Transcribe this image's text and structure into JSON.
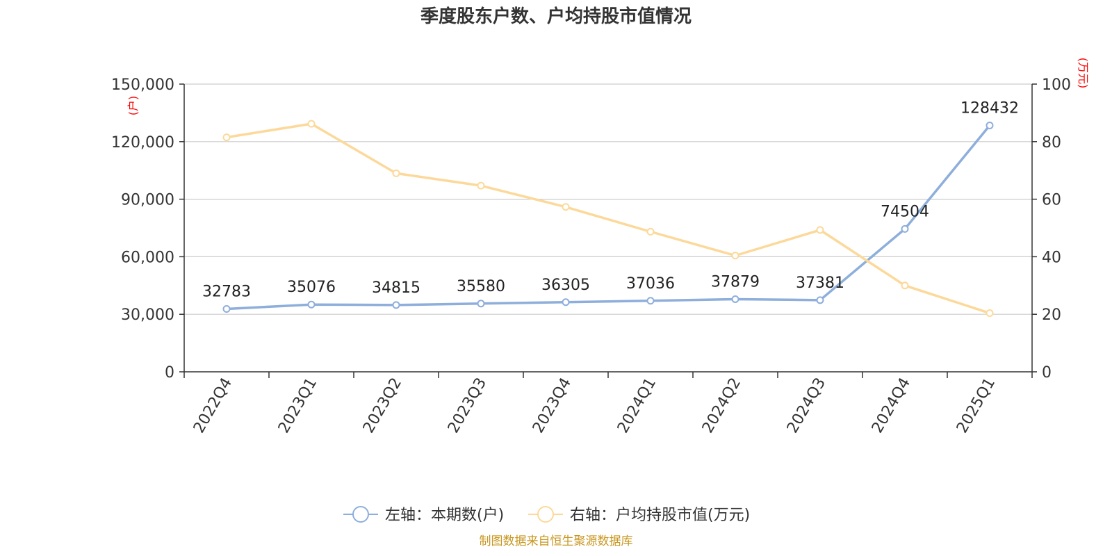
{
  "chart_data": {
    "type": "line",
    "title": "季度股东户数、户均持股市值情况",
    "categories": [
      "2022Q4",
      "2023Q1",
      "2023Q2",
      "2023Q3",
      "2023Q4",
      "2024Q1",
      "2024Q2",
      "2024Q3",
      "2024Q4",
      "2025Q1"
    ],
    "y_left": {
      "unit": "(户)",
      "ylim": [
        0,
        150000
      ],
      "ticks": [
        "0",
        "30,000",
        "60,000",
        "90,000",
        "120,000",
        "150,000"
      ],
      "tick_values": [
        0,
        30000,
        60000,
        90000,
        120000,
        150000
      ]
    },
    "y_right": {
      "unit": "(万元)",
      "ylim": [
        0,
        100
      ],
      "ticks": [
        "0",
        "20",
        "40",
        "60",
        "80",
        "100"
      ],
      "tick_values": [
        0,
        20,
        40,
        60,
        80,
        100
      ]
    },
    "series": [
      {
        "name": "左轴：本期数(户)",
        "axis": "left",
        "color": "#8eaedb",
        "values": [
          32783,
          35076,
          34815,
          35580,
          36305,
          37036,
          37879,
          37381,
          74504,
          128432
        ],
        "labels": [
          "32783",
          "35076",
          "34815",
          "35580",
          "36305",
          "37036",
          "37879",
          "37381",
          "74504",
          "128432"
        ]
      },
      {
        "name": "右轴：户均持股市值(万元)",
        "axis": "right",
        "color": "#fcd99a",
        "values": [
          81.5,
          86.2,
          69.0,
          64.7,
          57.3,
          48.7,
          40.4,
          49.3,
          30.0,
          20.4
        ]
      }
    ],
    "grid": true,
    "legend_position": "bottom-center"
  },
  "source": "制图数据来自恒生聚源数据库"
}
